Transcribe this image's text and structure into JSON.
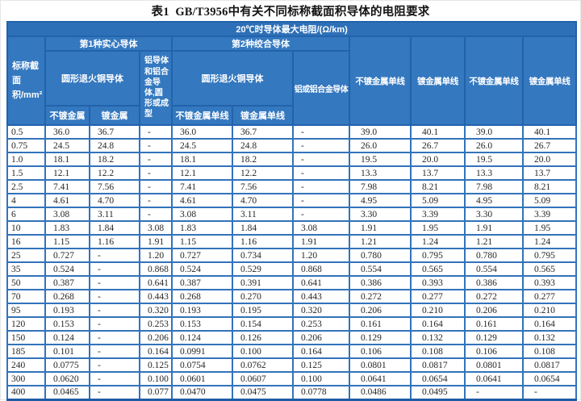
{
  "page": {
    "title": "表1  GB/T3956中有关不同标称截面积导体的电阻要求"
  },
  "colors": {
    "header_fill": "#3478BF",
    "header_fill_dark": "#2E70B7",
    "border_blue": "#2263AB",
    "data_border_blue": "#3273BA",
    "data_text": "#262626"
  },
  "table": {
    "header": {
      "top_title": "20℃时导体最大电阻/(Ω/km)",
      "area_label": "标称截面积/mm²",
      "group1_label": "第1种实心导体",
      "group2_label": "第2种绞合导体",
      "copper1_label": "圆形退火铜导体",
      "alu1_label": "铝导体和铝合金导体,圆形或成型",
      "copper2_label": "圆形退火铜导体",
      "alu2_label": "铝或铝合金导体",
      "sub_labels": [
        "不镀金属",
        "镀金属",
        "不镀金属单线",
        "镀金属单线"
      ],
      "tail_labels": [
        "不镀金属单线",
        "镀金属单线",
        "不镀金属单线",
        "镀金属单线"
      ]
    },
    "rows": [
      [
        "0.5",
        "36.0",
        "36.7",
        "-",
        "36.0",
        "36.7",
        "-",
        "39.0",
        "40.1",
        "39.0",
        "40.1"
      ],
      [
        "0.75",
        "24.5",
        "24.8",
        "-",
        "24.5",
        "24.8",
        "-",
        "26.0",
        "26.7",
        "26.0",
        "26.7"
      ],
      [
        "1.0",
        "18.1",
        "18.2",
        "-",
        "18.1",
        "18.2",
        "-",
        "19.5",
        "20.0",
        "19.5",
        "20.0"
      ],
      [
        "1.5",
        "12.1",
        "12.2",
        "-",
        "12.1",
        "12.2",
        "-",
        "13.3",
        "13.7",
        "13.3",
        "13.7"
      ],
      [
        "2.5",
        "7.41",
        "7.56",
        "-",
        "7.41",
        "7.56",
        "-",
        "7.98",
        "8.21",
        "7.98",
        "8.21"
      ],
      [
        "4",
        "4.61",
        "4.70",
        "-",
        "4.61",
        "4.70",
        "-",
        "4.95",
        "5.09",
        "4.95",
        "5.09"
      ],
      [
        "6",
        "3.08",
        "3.11",
        "-",
        "3.08",
        "3.11",
        "-",
        "3.30",
        "3.39",
        "3.30",
        "3.39"
      ],
      [
        "10",
        "1.83",
        "1.84",
        "3.08",
        "1.83",
        "1.84",
        "3.08",
        "1.91",
        "1.95",
        "1.91",
        "1.95"
      ],
      [
        "16",
        "1.15",
        "1.16",
        "1.91",
        "1.15",
        "1.16",
        "1.91",
        "1.21",
        "1.24",
        "1.21",
        "1.24"
      ],
      [
        "25",
        "0.727",
        "-",
        "1.20",
        "0.727",
        "0.734",
        "1.20",
        "0.780",
        "0.795",
        "0.780",
        "0.795"
      ],
      [
        "35",
        "0.524",
        "-",
        "0.868",
        "0.524",
        "0.529",
        "0.868",
        "0.554",
        "0.565",
        "0.554",
        "0.565"
      ],
      [
        "50",
        "0.387",
        "-",
        "0.641",
        "0.387",
        "0.391",
        "0.641",
        "0.386",
        "0.393",
        "0.386",
        "0.393"
      ],
      [
        "70",
        "0.268",
        "-",
        "0.443",
        "0.268",
        "0.270",
        "0.443",
        "0.272",
        "0.277",
        "0.272",
        "0.277"
      ],
      [
        "95",
        "0.193",
        "-",
        "0.320",
        "0.193",
        "0.195",
        "0.320",
        "0.206",
        "0.210",
        "0.206",
        "0.210"
      ],
      [
        "120",
        "0.153",
        "-",
        "0.253",
        "0.153",
        "0.154",
        "0.253",
        "0.161",
        "0.164",
        "0.161",
        "0.164"
      ],
      [
        "150",
        "0.124",
        "-",
        "0.206",
        "0.124",
        "0.126",
        "0.206",
        "0.129",
        "0.132",
        "0.129",
        "0.132"
      ],
      [
        "185",
        "0.101",
        "-",
        "0.164",
        "0.0991",
        "0.100",
        "0.164",
        "0.106",
        "0.108",
        "0.106",
        "0.108"
      ],
      [
        "240",
        "0.0775",
        "-",
        "0.125",
        "0.0754",
        "0.0762",
        "0.125",
        "0.0801",
        "0.0817",
        "0.0801",
        "0.0817"
      ],
      [
        "300",
        "0.0620",
        "-",
        "0.100",
        "0.0601",
        "0.0607",
        "0.100",
        "0.0641",
        "0.0654",
        "0.0641",
        "0.0654"
      ],
      [
        "400",
        "0.0465",
        "-",
        "0.077",
        "0.0470",
        "0.0475",
        "0.0778",
        "0.0486",
        "0.0495",
        "-",
        "-"
      ]
    ]
  }
}
